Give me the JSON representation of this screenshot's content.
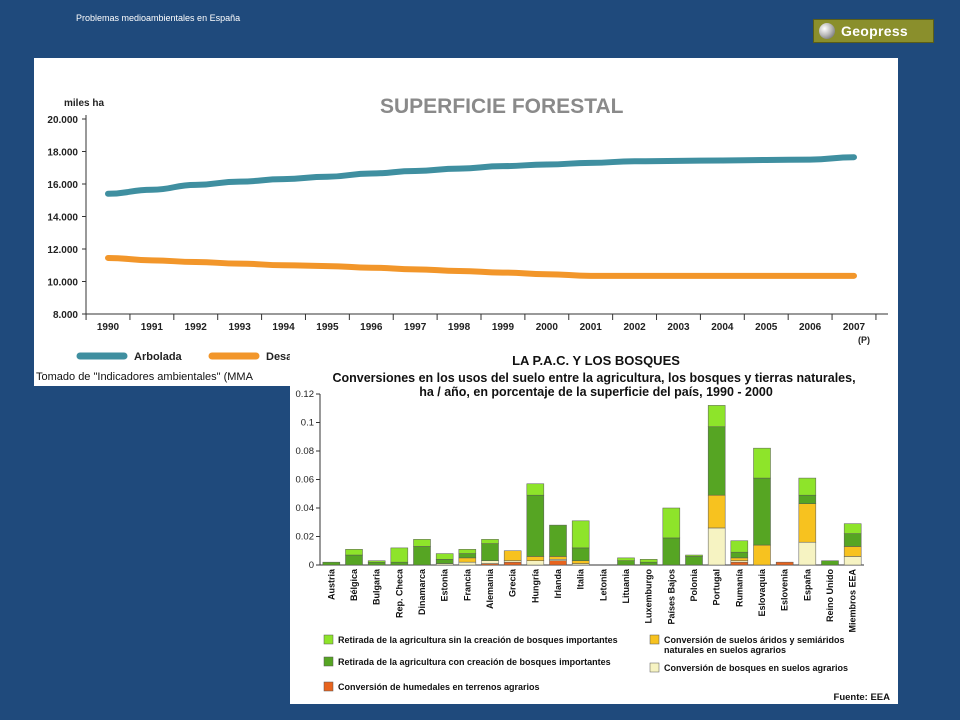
{
  "slide": {
    "header_text": "Problemas medioambientales en España",
    "logo_text": "Geopress"
  },
  "chart_data": [
    {
      "type": "line",
      "title": "SUPERFICIE FORESTAL",
      "ylabel": "miles ha",
      "ylim": [
        8000,
        20000
      ],
      "yticks": [
        "8.000",
        "10.000",
        "12.000",
        "14.000",
        "16.000",
        "18.000",
        "20.000"
      ],
      "ytick_values": [
        8000,
        10000,
        12000,
        14000,
        16000,
        18000,
        20000
      ],
      "categories": [
        "1990",
        "1991",
        "1992",
        "1993",
        "1994",
        "1995",
        "1996",
        "1997",
        "1998",
        "1999",
        "2000",
        "2001",
        "2002",
        "2003",
        "2004",
        "2005",
        "2006",
        "2007"
      ],
      "x_note": "(P)",
      "series": [
        {
          "name": "Arbolada",
          "color": "#3f8fa0",
          "values": [
            15400,
            15650,
            15950,
            16150,
            16300,
            16450,
            16650,
            16800,
            16950,
            17100,
            17200,
            17300,
            17400,
            17420,
            17450,
            17480,
            17500,
            17650
          ]
        },
        {
          "name": "Desar",
          "color": "#f2962a",
          "values": [
            11450,
            11300,
            11200,
            11100,
            11000,
            10950,
            10850,
            10750,
            10650,
            10550,
            10450,
            10350,
            10350,
            10350,
            10350,
            10350,
            10350,
            10350
          ]
        }
      ],
      "source": "Tomado de \"Indicadores ambientales\" (MMA"
    },
    {
      "type": "bar",
      "stacked": true,
      "title_line1": "LA P.A.C. Y LOS BOSQUES",
      "title_line2": "Conversiones en los usos del suelo entre la agricultura, los bosques y tierras naturales,",
      "title_line3": "ha / año, en porcentaje de la superficie del país, 1990 - 2000",
      "ylim": [
        0,
        0.12
      ],
      "yticks": [
        "0",
        "0.02",
        "0.04",
        "0.06",
        "0.08",
        "0.1",
        "0.12"
      ],
      "ytick_values": [
        0,
        0.02,
        0.04,
        0.06,
        0.08,
        0.1,
        0.12
      ],
      "categories": [
        "Austria",
        "Bélgica",
        "Bulgaria",
        "Rep. Checa",
        "Dinamarca",
        "Estonia",
        "Francia",
        "Alemania",
        "Grecia",
        "Hungría",
        "Irlanda",
        "Italia",
        "Letonia",
        "Lituania",
        "Luxemburgo",
        "Países Bajos",
        "Polonia",
        "Portugal",
        "Rumanía",
        "Eslovaquia",
        "Eslovenia",
        "España",
        "Reino Unido",
        "Miembros EEA"
      ],
      "series": [
        {
          "name": "Conversión de humedales en terrenos agrarios",
          "color": "#e8641e",
          "values": [
            0,
            0,
            0,
            0,
            0,
            0,
            0,
            0.001,
            0.002,
            0,
            0.003,
            0,
            0,
            0,
            0,
            0,
            0,
            0,
            0.002,
            0,
            0.002,
            0,
            0,
            0
          ]
        },
        {
          "name": "Conversión de bosques en suelos agrarios",
          "color": "#f6f3c2",
          "values": [
            0,
            0,
            0,
            0,
            0,
            0.001,
            0.002,
            0.002,
            0.001,
            0.003,
            0.001,
            0.001,
            0,
            0,
            0,
            0,
            0,
            0.026,
            0.001,
            0,
            0,
            0.016,
            0,
            0.006
          ]
        },
        {
          "name": "Conversión de suelos áridos y semiáridos naturales en suelos agrarios",
          "color": "#f7c21f",
          "values": [
            0,
            0,
            0,
            0,
            0,
            0,
            0.003,
            0,
            0.007,
            0.003,
            0.002,
            0.002,
            0,
            0,
            0,
            0,
            0,
            0.023,
            0.002,
            0.014,
            0,
            0.027,
            0,
            0.007
          ]
        },
        {
          "name": "Retirada de la agricultura con creación de bosques importantes",
          "color": "#56a523",
          "values": [
            0.002,
            0.007,
            0.002,
            0.002,
            0.013,
            0.003,
            0.003,
            0.012,
            0,
            0.043,
            0.022,
            0.009,
            0,
            0.003,
            0.002,
            0.019,
            0.006,
            0.048,
            0.004,
            0.047,
            0,
            0.006,
            0.003,
            0.009
          ]
        },
        {
          "name": "Retirada de la agricultura sin la creación de bosques importantes",
          "color": "#8ee42a",
          "values": [
            0,
            0.004,
            0.001,
            0.01,
            0.005,
            0.004,
            0.003,
            0.003,
            0,
            0.008,
            0,
            0.019,
            0,
            0.002,
            0.002,
            0.021,
            0.001,
            0.015,
            0.008,
            0.021,
            0,
            0.012,
            0,
            0.007
          ]
        }
      ],
      "legend_order": [
        4,
        2,
        3,
        1,
        0
      ],
      "legend_line_a": "Conversión de suelos áridos y semiáridos",
      "legend_line_b": "naturales en suelos agrarios",
      "source": "Fuente: EEA"
    }
  ]
}
